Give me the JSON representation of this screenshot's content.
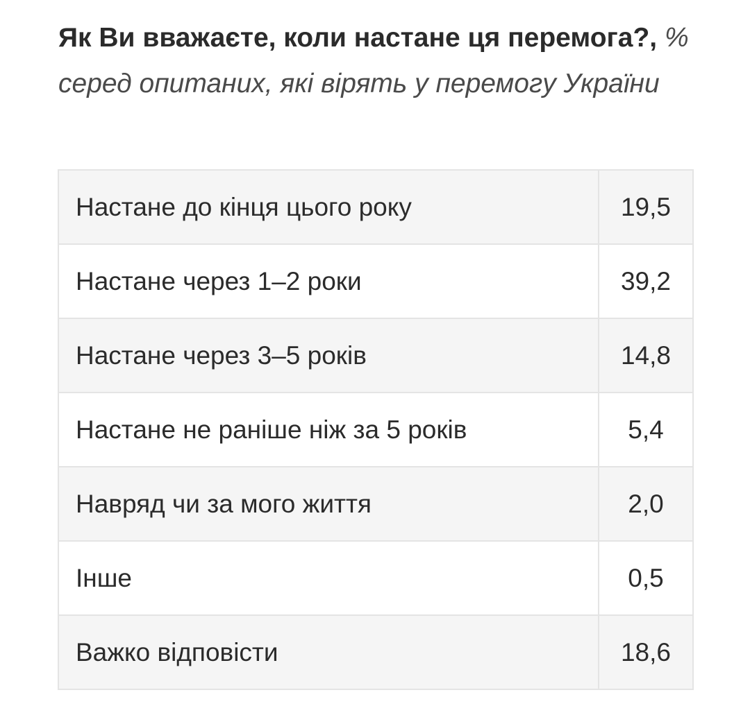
{
  "heading": {
    "question": "Як Ви вважаєте, коли настане ця перемога?,",
    "subtitle": "% серед опитаних, які вірять у перемогу України"
  },
  "table": {
    "rows": [
      {
        "label": "Настане до кінця цього року",
        "value": "19,5"
      },
      {
        "label": "Настане через 1–2 роки",
        "value": "39,2"
      },
      {
        "label": "Настане через 3–5 років",
        "value": "14,8"
      },
      {
        "label": "Настане не раніше ніж за 5 років",
        "value": "5,4"
      },
      {
        "label": "Навряд чи за мого життя",
        "value": "2,0"
      },
      {
        "label": "Інше",
        "value": "0,5"
      },
      {
        "label": "Важко відповісти",
        "value": "18,6"
      }
    ]
  }
}
